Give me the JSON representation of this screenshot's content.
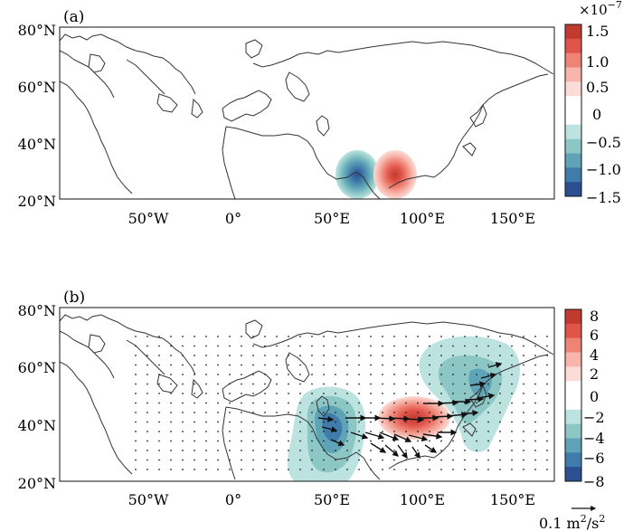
{
  "panels": [
    {
      "id": "a",
      "label": "(a)",
      "lat_labels": [
        "80°N",
        "60°N",
        "40°N",
        "20°N"
      ],
      "lon_labels": [
        "50°W",
        "0°",
        "50°E",
        "100°E",
        "150°E"
      ],
      "colorbar": {
        "exponent": "×10",
        "exponent_power": "−7",
        "ticks": [
          "1.5",
          "1.0",
          "0.5",
          "0",
          "−0.5",
          "−1.0",
          "−1.5"
        ],
        "colors": [
          "#c23a2e",
          "#e0544a",
          "#ef8476",
          "#f7b5ab",
          "#fbdcd6",
          "#ffffff",
          "#ffffff",
          "#bde3e1",
          "#8cc7c6",
          "#5fa3b6",
          "#3f7cab",
          "#2c4f91"
        ]
      }
    },
    {
      "id": "b",
      "label": "(b)",
      "lat_labels": [
        "80°N",
        "60°N",
        "40°N",
        "20°N"
      ],
      "lon_labels": [
        "50°W",
        "0°",
        "50°E",
        "100°E",
        "150°E"
      ],
      "colorbar": {
        "ticks": [
          "8",
          "6",
          "4",
          "2",
          "0",
          "−2",
          "−4",
          "−6",
          "−8"
        ],
        "colors": [
          "#c23a2e",
          "#e0544a",
          "#ef8476",
          "#f7b5ab",
          "#fbdcd6",
          "#ffffff",
          "#ffffff",
          "#bde3e1",
          "#8cc7c6",
          "#5fa3b6",
          "#3f7cab",
          "#2c4f91"
        ]
      },
      "reference_vector": {
        "value": "0.1 m",
        "unit_sup1": "2",
        "slash": "/s",
        "unit_sup2": "2"
      }
    }
  ],
  "map_data": {
    "projection": "equirectangular",
    "lon_range": [
      -90,
      180
    ],
    "lat_range": [
      20,
      80
    ],
    "panel_a_anomalies": [
      {
        "lon": 65,
        "lat": 28,
        "value": -1.5
      },
      {
        "lon": 88,
        "lat": 28,
        "value": 1.5
      }
    ],
    "panel_b_anomalies": [
      {
        "lon": 95,
        "lat": 42,
        "value": 8
      },
      {
        "lon": 58,
        "lat": 35,
        "value": -8
      },
      {
        "lon": 138,
        "lat": 55,
        "value": -4
      }
    ]
  }
}
